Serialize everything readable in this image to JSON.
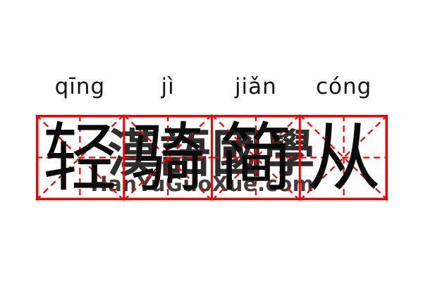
{
  "colors": {
    "background": "#ffffff",
    "grid_red": "#f40000",
    "pinyin_ink": "#141414",
    "character_ink": "#0a0a0a",
    "watermark_hanzi_color": "#201c1b",
    "watermark_site_color": "#3a3230"
  },
  "pinyin": {
    "syllables": [
      "qīng",
      "jì",
      "jiǎn",
      "cóng"
    ]
  },
  "idiom": {
    "characters": [
      "轻",
      "骑",
      "简",
      "从"
    ]
  },
  "watermark": {
    "hanzi": "漢語國學",
    "site": "HanYuGuoXue.com"
  },
  "grid": {
    "cells": 4
  }
}
